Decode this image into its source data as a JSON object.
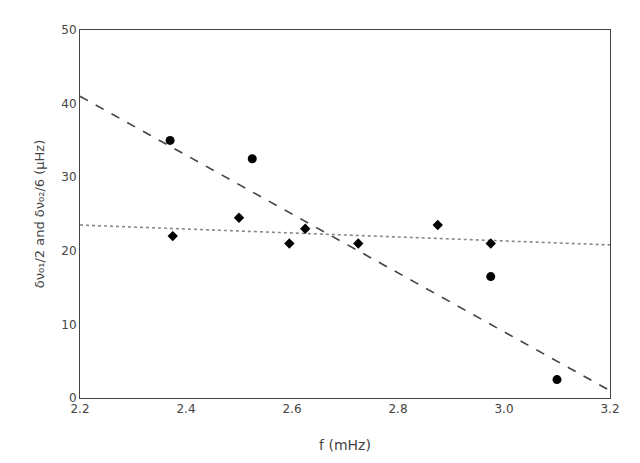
{
  "chart_data": {
    "type": "scatter",
    "xlabel": "f (mHz)",
    "ylabel": "δν₀₁/2 and δν₀₂/6 (μHz)",
    "xlim": [
      2.2,
      3.2
    ],
    "ylim": [
      0,
      50
    ],
    "xticks": [
      2.2,
      2.4,
      2.6,
      2.8,
      {
        "value": 3.0,
        "label": "3.0"
      },
      3.2
    ],
    "yticks": [
      0,
      10,
      20,
      30,
      40,
      50
    ],
    "grid": false,
    "series": [
      {
        "type": "line",
        "line_style": "dashed",
        "color": "#444444",
        "x": [
          2.2,
          3.2
        ],
        "values": [
          41.0,
          1.0
        ]
      },
      {
        "type": "line",
        "line_style": "dotted",
        "color": "#888888",
        "x": [
          2.2,
          3.2
        ],
        "values": [
          23.5,
          20.8
        ]
      },
      {
        "type": "scatter",
        "marker": "circle",
        "color": "black",
        "x": [
          2.37,
          2.525,
          2.975,
          3.1
        ],
        "values": [
          35.0,
          32.5,
          16.5,
          2.5
        ]
      },
      {
        "type": "scatter",
        "marker": "diamond",
        "color": "black",
        "x": [
          2.375,
          2.5,
          2.595,
          2.625,
          2.725,
          2.875,
          2.975
        ],
        "values": [
          22.0,
          24.5,
          21.0,
          23.0,
          21.0,
          23.5,
          21.0
        ]
      }
    ]
  }
}
